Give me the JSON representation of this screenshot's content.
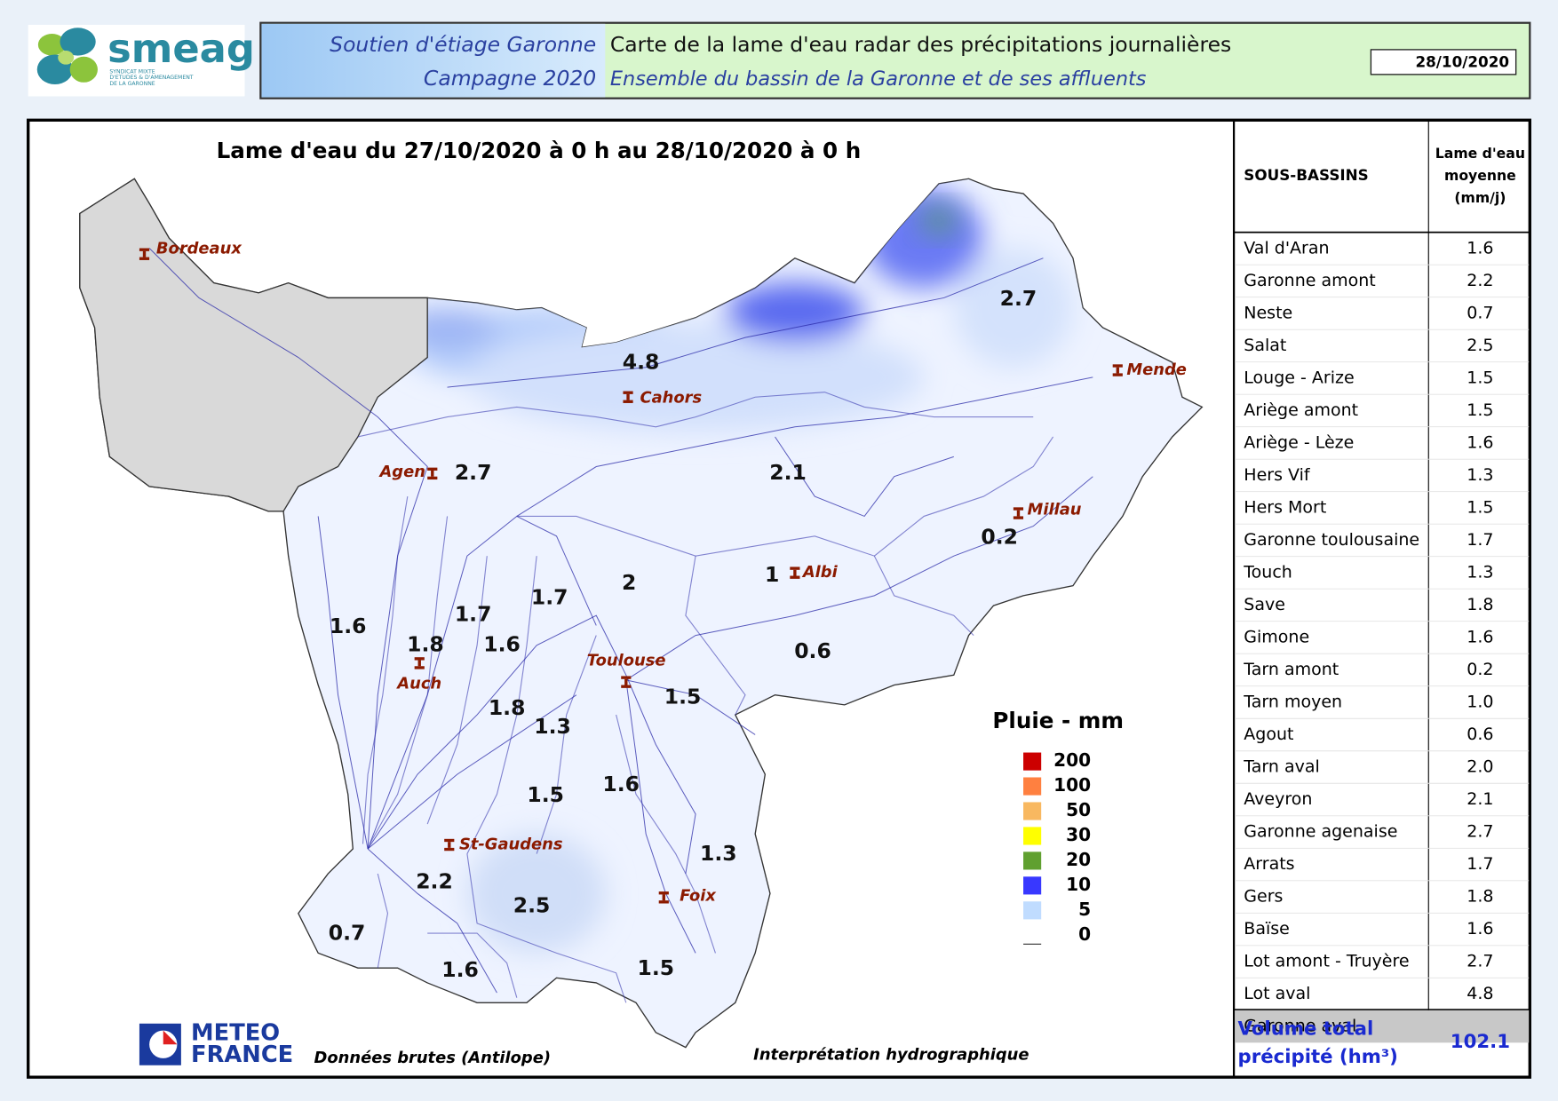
{
  "header": {
    "logo": {
      "name": "smeag",
      "subtitle": [
        "SYNDICAT MIXTE",
        "D'ETUDES & D'AMENAGEMENT",
        "DE LA GARONNE"
      ]
    },
    "program": "Soutien d'étiage Garonne",
    "campaign": "Campagne 2020",
    "title": "Carte de la lame d'eau radar des précipitations journalières",
    "subtitle": "Ensemble du bassin de la Garonne et de ses affluents",
    "date": "28/10/2020"
  },
  "map": {
    "title": "Lame d'eau du 27/10/2020 à 0 h au 28/10/2020 à 0 h",
    "cities": [
      "Bordeaux",
      "Cahors",
      "Mende",
      "Agen",
      "Millau",
      "Albi",
      "Toulouse",
      "Auch",
      "St-Gaudens",
      "Foix"
    ],
    "basin_values": [
      "4.8",
      "2.7",
      "2.7",
      "2.1",
      "0.2",
      "1",
      "2",
      "1.7",
      "1.7",
      "1.6",
      "1.8",
      "1.6",
      "0.6",
      "1.5",
      "1.8",
      "1.3",
      "1.6",
      "1.5",
      "1.3",
      "2.2",
      "2.5",
      "0.7",
      "1.6",
      "1.5"
    ],
    "legend": {
      "title": "Pluie - mm",
      "classes": [
        "200",
        "100",
        "50",
        "30",
        "20",
        "10",
        "5",
        "0"
      ],
      "colors": [
        "#cc0000",
        "#ff8040",
        "#f8b860",
        "#ffff00",
        "#60a030",
        "#3838ff",
        "#c0dcff",
        "#ffffff"
      ]
    },
    "source_logo": [
      "METEO",
      "FRANCE"
    ],
    "source": "Données brutes (Antilope)",
    "interpretation": "Interprétation hydrographique"
  },
  "table": {
    "headers": {
      "basin": "SOUS-BASSINS",
      "value": [
        "Lame d'eau",
        "moyenne",
        "(mm/j)"
      ]
    },
    "rows": [
      [
        "Val d'Aran",
        "1.6"
      ],
      [
        "Garonne amont",
        "2.2"
      ],
      [
        "Neste",
        "0.7"
      ],
      [
        "Salat",
        "2.5"
      ],
      [
        "Louge - Arize",
        "1.5"
      ],
      [
        "Ariège amont",
        "1.5"
      ],
      [
        "Ariège - Lèze",
        "1.6"
      ],
      [
        "Hers Vif",
        "1.3"
      ],
      [
        "Hers Mort",
        "1.5"
      ],
      [
        "Garonne toulousaine",
        "1.7"
      ],
      [
        "Touch",
        "1.3"
      ],
      [
        "Save",
        "1.8"
      ],
      [
        "Gimone",
        "1.6"
      ],
      [
        "Tarn amont",
        "0.2"
      ],
      [
        "Tarn moyen",
        "1.0"
      ],
      [
        "Agout",
        "0.6"
      ],
      [
        "Tarn aval",
        "2.0"
      ],
      [
        "Aveyron",
        "2.1"
      ],
      [
        "Garonne agenaise",
        "2.7"
      ],
      [
        "Arrats",
        "1.7"
      ],
      [
        "Gers",
        "1.8"
      ],
      [
        "Baïse",
        "1.6"
      ],
      [
        "Lot amont - Truyère",
        "2.7"
      ],
      [
        "Lot aval",
        "4.8"
      ],
      [
        "Garonne aval"
      ]
    ],
    "total": {
      "label": [
        "Volume total",
        "précipité (hm³)"
      ],
      "value": "102.1"
    }
  }
}
